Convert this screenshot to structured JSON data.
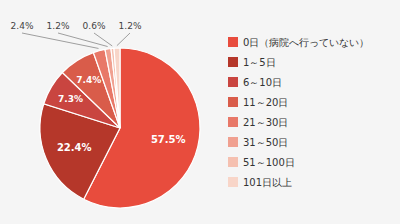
{
  "chart_data": {
    "type": "pie",
    "categories": [
      "0日（病院へ行っていない）",
      "1～5日",
      "6～10日",
      "11～20日",
      "21～30日",
      "31～50日",
      "51～100日",
      "101日以上"
    ],
    "values": [
      57.5,
      22.4,
      7.3,
      7.4,
      2.4,
      1.2,
      0.6,
      1.2
    ],
    "value_labels": [
      "57.5%",
      "22.4%",
      "7.3%",
      "7.4%",
      "2.4%",
      "1.2%",
      "0.6%",
      "1.2%"
    ],
    "colors": [
      "#e84c3d",
      "#b5372a",
      "#c94540",
      "#d95c4a",
      "#e87868",
      "#f0a090",
      "#f5c0b0",
      "#f8d5c8"
    ],
    "data_labels": true,
    "legend": "right"
  }
}
